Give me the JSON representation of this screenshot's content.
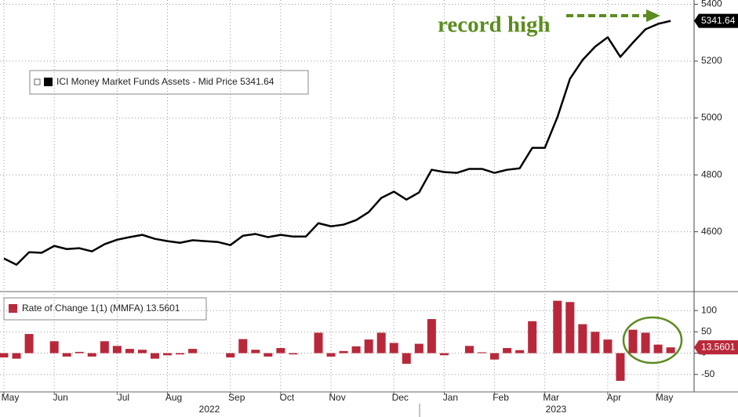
{
  "chart_data": [
    {
      "type": "line",
      "annotation": "record high",
      "series": [
        {
          "name": "ICI Money Market Funds Assets - Mid Price 5341.64",
          "color": "#000000",
          "values": [
            4506,
            4484,
            4528,
            4526,
            4550,
            4539,
            4542,
            4531,
            4556,
            4572,
            4581,
            4589,
            4575,
            4567,
            4561,
            4570,
            4567,
            4564,
            4553,
            4586,
            4592,
            4581,
            4589,
            4583,
            4583,
            4630,
            4619,
            4625,
            4641,
            4669,
            4719,
            4741,
            4713,
            4738,
            4818,
            4810,
            4807,
            4821,
            4821,
            4807,
            4818,
            4823,
            4895,
            4895,
            5003,
            5138,
            5204,
            5251,
            5284,
            5215,
            5265,
            5312,
            5331,
            5341.64
          ],
          "last_label": "5341.64"
        }
      ],
      "ylim": [
        4395,
        5415
      ],
      "yticks": [
        4600,
        4800,
        5000,
        5200,
        5400
      ],
      "grid": true
    },
    {
      "type": "bar",
      "categories": [
        "May",
        null,
        null,
        null,
        "Jun",
        null,
        null,
        null,
        null,
        "Jul",
        null,
        null,
        null,
        "Aug",
        null,
        null,
        null,
        null,
        "Sep",
        null,
        null,
        null,
        "Oct",
        null,
        null,
        null,
        "Nov",
        null,
        null,
        null,
        null,
        "Dec",
        null,
        null,
        null,
        "Jan",
        null,
        null,
        null,
        "Feb",
        null,
        null,
        null,
        "Mar",
        null,
        null,
        null,
        null,
        "Apr",
        null,
        null,
        null,
        "May",
        null
      ],
      "years": [
        "2022",
        "2023"
      ],
      "series": [
        {
          "name": "Rate of Change 1(1) (MMFA) 13.5601",
          "color": "#b8283a",
          "values": [
            -10,
            -13,
            45,
            0,
            28,
            -8,
            3,
            -8,
            28,
            17,
            10,
            8,
            -13,
            -5,
            -3,
            10,
            0,
            0,
            -10,
            33,
            8,
            -8,
            12,
            -3,
            0,
            48,
            -8,
            5,
            16,
            32,
            48,
            24,
            -25,
            22,
            80,
            -5,
            0,
            17,
            2,
            -15,
            12,
            7,
            75,
            0,
            123,
            120,
            68,
            50,
            32,
            -65,
            55,
            48,
            20,
            13.5601
          ],
          "last_label": "13.5601"
        }
      ],
      "ylim": [
        -91,
        139
      ],
      "yticks": [
        -50,
        0,
        50,
        100
      ],
      "grid": true
    }
  ]
}
